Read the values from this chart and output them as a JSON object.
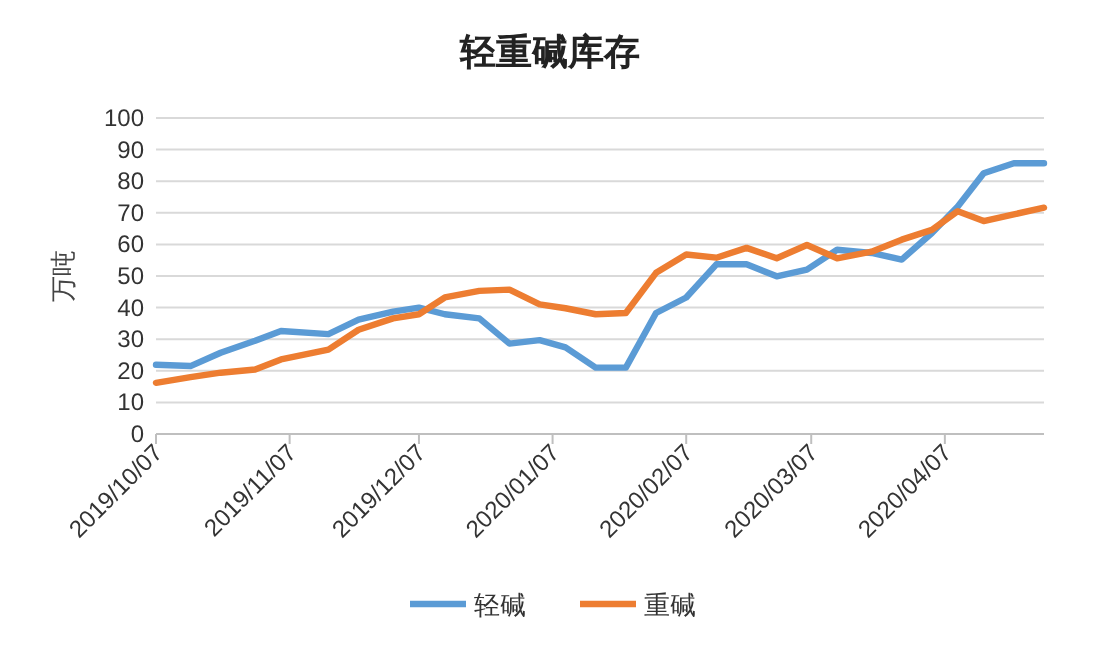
{
  "chart_data": {
    "type": "line",
    "title": "轻重碱库存",
    "ylabel": "万吨",
    "x": [
      "2019-10-07",
      "2019-10-15",
      "2019-10-22",
      "2019-10-30",
      "2019-11-05",
      "2019-11-16",
      "2019-11-23",
      "2019-12-01",
      "2019-12-07",
      "2019-12-13",
      "2019-12-21",
      "2019-12-28",
      "2020-01-04",
      "2020-01-10",
      "2020-01-17",
      "2020-01-24",
      "2020-01-31",
      "2020-02-07",
      "2020-02-14",
      "2020-02-21",
      "2020-02-28",
      "2020-03-06",
      "2020-03-13",
      "2020-03-21",
      "2020-03-28",
      "2020-04-04",
      "2020-04-10",
      "2020-04-16",
      "2020-04-23",
      "2020-04-30"
    ],
    "series": [
      {
        "name": "轻碱",
        "color": "#5b9bd5",
        "values": [
          21.9,
          21.5,
          25.7,
          29.5,
          32.6,
          31.6,
          36.2,
          38.7,
          40,
          37.9,
          36.6,
          28.6,
          29.7,
          27.4,
          21,
          21,
          38.3,
          43.2,
          53.7,
          53.7,
          49.9,
          52,
          58.3,
          57.3,
          55.2,
          63.6,
          72,
          82.5,
          85.7,
          85.7
        ]
      },
      {
        "name": "重碱",
        "color": "#ed7d31",
        "values": [
          16.2,
          18,
          19.4,
          20.4,
          23.6,
          26.7,
          33,
          36.6,
          37.9,
          43.2,
          45.3,
          45.7,
          41,
          39.8,
          37.9,
          38.3,
          51,
          56.8,
          55.8,
          58.9,
          55.6,
          59.8,
          55.6,
          57.7,
          61.5,
          64.6,
          70.5,
          67.4,
          69.5,
          71.6
        ]
      }
    ],
    "xlim": [
      "2019-10-07",
      "2020-04-30"
    ],
    "xticks": [
      {
        "value": "2019-10-07",
        "label": "2019/10/07"
      },
      {
        "value": "2019-11-07",
        "label": "2019/11/07"
      },
      {
        "value": "2019-12-07",
        "label": "2019/12/07"
      },
      {
        "value": "2020-01-07",
        "label": "2020/01/07"
      },
      {
        "value": "2020-02-07",
        "label": "2020/02/07"
      },
      {
        "value": "2020-03-07",
        "label": "2020/03/07"
      },
      {
        "value": "2020-04-07",
        "label": "2020/04/07"
      }
    ],
    "ylim": [
      0,
      100
    ],
    "yticks": [
      0,
      10,
      20,
      30,
      40,
      50,
      60,
      70,
      80,
      90,
      100
    ],
    "grid": "y",
    "legend": "bottom",
    "marker": "none",
    "line_style": "solid"
  }
}
